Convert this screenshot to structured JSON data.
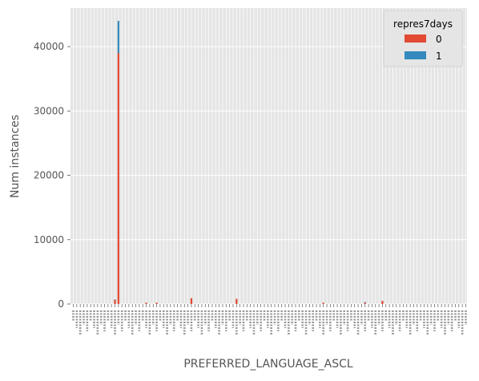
{
  "chart_data": {
    "type": "bar",
    "stacked": true,
    "title": "",
    "xlabel": "PREFERRED_LANGUAGE_ASCL",
    "ylabel": "Num instances",
    "ylim": [
      0,
      46000
    ],
    "yticks": [
      0,
      10000,
      20000,
      30000,
      40000
    ],
    "legend": {
      "title": "repres7days",
      "position": "top-right"
    },
    "category_count": 114,
    "series": [
      {
        "name": "0",
        "color": "#E24A33",
        "nonzero": [
          {
            "index": 12,
            "value": 650
          },
          {
            "index": 13,
            "value": 39000
          },
          {
            "index": 21,
            "value": 200
          },
          {
            "index": 24,
            "value": 200
          },
          {
            "index": 34,
            "value": 900
          },
          {
            "index": 47,
            "value": 800
          },
          {
            "index": 72,
            "value": 200
          },
          {
            "index": 84,
            "value": 200
          },
          {
            "index": 89,
            "value": 500
          }
        ]
      },
      {
        "name": "1",
        "color": "#348ABD",
        "nonzero": [
          {
            "index": 12,
            "value": 50
          },
          {
            "index": 13,
            "value": 5000
          },
          {
            "index": 84,
            "value": 100
          }
        ]
      }
    ],
    "tick_label_note": "114 rotated, overlapping category labels (e.g. '0.0', '1101.0', '7107.0'); individually illegible in source"
  }
}
